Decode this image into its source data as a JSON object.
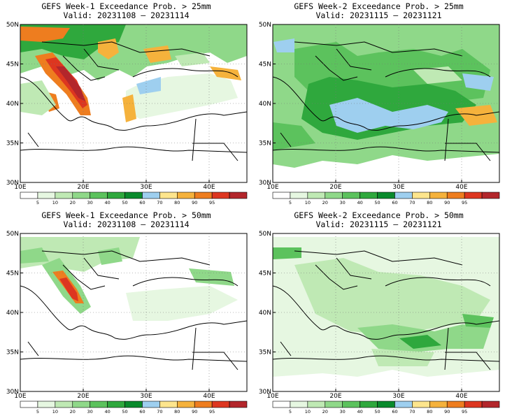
{
  "panels": [
    {
      "id": "w1-25",
      "title": "GEFS Week-1 Exceedance Prob. > 25mm",
      "valid": "Valid: 20231108 – 20231114"
    },
    {
      "id": "w2-25",
      "title": "GEFS Week-2 Exceedance Prob. > 25mm",
      "valid": "Valid: 20231115 – 20231121"
    },
    {
      "id": "w1-50",
      "title": "GEFS Week-1 Exceedance Prob. > 50mm",
      "valid": "Valid: 20231108 – 20231114"
    },
    {
      "id": "w2-50",
      "title": "GEFS Week-2 Exceedance Prob. > 50mm",
      "valid": "Valid: 20231115 – 20231121"
    }
  ],
  "axes": {
    "lat_labels": [
      "50N",
      "45N",
      "40N",
      "35N",
      "30N"
    ],
    "lat_values": [
      50,
      45,
      40,
      35,
      30
    ],
    "lon_labels": [
      "10E",
      "20E",
      "30E",
      "40E"
    ],
    "lon_values": [
      10,
      20,
      30,
      40
    ],
    "lon_range": [
      10,
      46
    ],
    "lat_range": [
      30,
      50
    ],
    "grid": "dotted"
  },
  "colorbar": {
    "labels": [
      "5",
      "10",
      "20",
      "30",
      "40",
      "50",
      "60",
      "70",
      "80",
      "90",
      "95"
    ],
    "colors": [
      "#ffffff",
      "#e6f7e1",
      "#bfe9b4",
      "#8fd889",
      "#5cc25d",
      "#2fa83d",
      "#0a8a2c",
      "#9ecfef",
      "#fde58d",
      "#f5b23c",
      "#ee7d1f",
      "#dd3620",
      "#b3262b"
    ]
  }
}
